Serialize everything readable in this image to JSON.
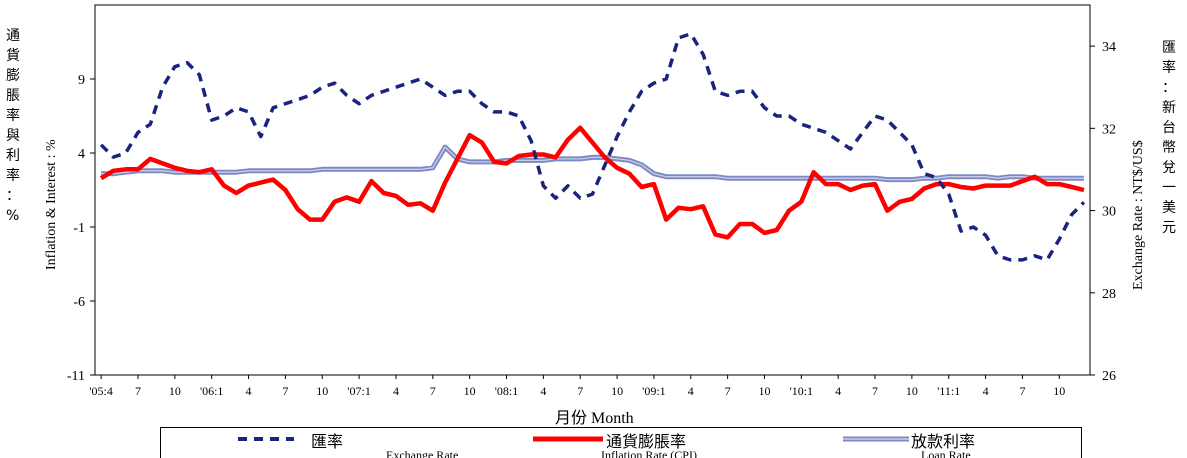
{
  "chart_data": {
    "type": "line",
    "xlabel": "月份 Month",
    "ylabel_left_zh": [
      "通",
      "貨",
      "膨",
      "脹",
      "率",
      "與",
      "利",
      "率",
      "：",
      "%"
    ],
    "ylabel_left_en": "Inflation & Interest : %",
    "ylabel_right_en": "Exchange Rate : NT$/US$",
    "ylabel_right_zh": [
      "匯",
      "率",
      "：",
      "新",
      "台",
      "幣",
      "兌",
      "一",
      "美",
      "元"
    ],
    "ylim_left": [
      -11,
      14
    ],
    "ylim_right": [
      26,
      35
    ],
    "left_ticks": [
      "9",
      "4",
      "-1",
      "-6",
      "-11"
    ],
    "right_ticks": [
      "34",
      "32",
      "30",
      "28",
      "26"
    ],
    "x_tick_labels": [
      "'05:4",
      "7",
      "10",
      "'06:1",
      "4",
      "7",
      "10",
      "'07:1",
      "4",
      "7",
      "10",
      "'08:1",
      "4",
      "7",
      "10",
      "'09:1",
      "4",
      "7",
      "10",
      "'10:1",
      "4",
      "7",
      "10",
      "'11:1",
      "4",
      "7",
      "10"
    ],
    "series": [
      {
        "name": "匯率",
        "name_en": "Exchange Rate",
        "axis": "right",
        "style": "dashed",
        "color": "#1a237e",
        "values": [
          31.6,
          31.3,
          31.4,
          31.9,
          32.1,
          33.0,
          33.5,
          33.6,
          33.3,
          32.2,
          32.3,
          32.5,
          32.4,
          31.8,
          32.5,
          32.6,
          32.7,
          32.8,
          33.0,
          33.1,
          32.8,
          32.6,
          32.8,
          32.9,
          33.0,
          33.1,
          33.2,
          33.0,
          32.8,
          32.9,
          32.9,
          32.6,
          32.4,
          32.4,
          32.3,
          31.7,
          30.6,
          30.3,
          30.6,
          30.3,
          30.4,
          31.1,
          31.8,
          32.4,
          32.9,
          33.1,
          33.2,
          34.2,
          34.3,
          33.8,
          32.9,
          32.8,
          32.9,
          32.9,
          32.5,
          32.3,
          32.3,
          32.1,
          32.0,
          31.9,
          31.7,
          31.5,
          31.9,
          32.3,
          32.2,
          31.9,
          31.6,
          30.9,
          30.8,
          30.4,
          29.5,
          29.6,
          29.4,
          28.9,
          28.8,
          28.8,
          28.9,
          28.8,
          29.3,
          29.9,
          30.2
        ]
      },
      {
        "name": "通貨膨脹率",
        "name_en": "Inflation Rate (CPI)",
        "axis": "left",
        "style": "solid",
        "color": "#ff0000",
        "values": [
          2.3,
          2.8,
          2.9,
          2.9,
          3.6,
          3.3,
          3.0,
          2.8,
          2.7,
          2.9,
          1.8,
          1.3,
          1.8,
          2.0,
          2.2,
          1.5,
          0.2,
          -0.5,
          -0.5,
          0.7,
          1.0,
          0.7,
          2.1,
          1.3,
          1.1,
          0.5,
          0.6,
          0.1,
          2.0,
          3.6,
          5.2,
          4.7,
          3.4,
          3.3,
          3.8,
          3.9,
          3.9,
          3.7,
          4.9,
          5.7,
          4.7,
          3.7,
          3.0,
          2.6,
          1.7,
          1.9,
          -0.5,
          0.3,
          0.2,
          0.4,
          -1.5,
          -1.7,
          -0.8,
          -0.8,
          -1.4,
          -1.2,
          0.1,
          0.7,
          2.7,
          1.9,
          1.9,
          1.5,
          1.8,
          1.9,
          0.1,
          0.7,
          0.9,
          1.6,
          1.9,
          1.9,
          1.7,
          1.6,
          1.8,
          1.8,
          1.8,
          2.1,
          2.4,
          1.9,
          1.9,
          1.7,
          1.5
        ]
      },
      {
        "name": "放款利率",
        "name_en": "Loan Rate",
        "axis": "left",
        "style": "double",
        "color": "#7b88c4",
        "values": [
          2.6,
          2.6,
          2.7,
          2.8,
          2.8,
          2.8,
          2.7,
          2.7,
          2.7,
          2.7,
          2.7,
          2.7,
          2.8,
          2.8,
          2.8,
          2.8,
          2.8,
          2.8,
          2.9,
          2.9,
          2.9,
          2.9,
          2.9,
          2.9,
          2.9,
          2.9,
          2.9,
          3.0,
          4.4,
          3.6,
          3.4,
          3.4,
          3.4,
          3.5,
          3.5,
          3.5,
          3.5,
          3.6,
          3.6,
          3.6,
          3.7,
          3.7,
          3.6,
          3.5,
          3.2,
          2.6,
          2.4,
          2.4,
          2.4,
          2.4,
          2.4,
          2.3,
          2.3,
          2.3,
          2.3,
          2.3,
          2.3,
          2.3,
          2.3,
          2.3,
          2.3,
          2.3,
          2.3,
          2.3,
          2.2,
          2.2,
          2.2,
          2.3,
          2.3,
          2.4,
          2.4,
          2.4,
          2.4,
          2.3,
          2.4,
          2.4,
          2.3,
          2.3,
          2.3,
          2.3,
          2.3
        ]
      }
    ],
    "grid": false,
    "legend_position": "bottom"
  }
}
